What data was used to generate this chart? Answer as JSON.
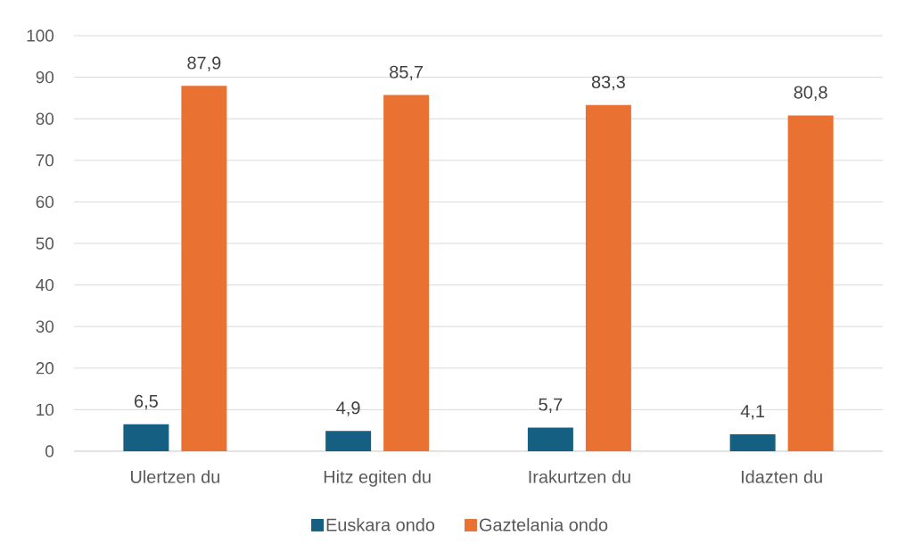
{
  "chart_data": {
    "type": "bar",
    "categories": [
      "Ulertzen du",
      "Hitz egiten du",
      "Irakurtzen du",
      "Idazten du"
    ],
    "series": [
      {
        "name": "Euskara ondo",
        "color": "#156082",
        "values": [
          6.5,
          4.9,
          5.7,
          4.1
        ],
        "value_labels": [
          "6,5",
          "4,9",
          "5,7",
          "4,1"
        ]
      },
      {
        "name": "Gaztelania ondo",
        "color": "#e97132",
        "values": [
          87.9,
          85.7,
          83.3,
          80.8
        ],
        "value_labels": [
          "87,9",
          "85,7",
          "83,3",
          "80,8"
        ]
      }
    ],
    "ylim": [
      0,
      100
    ],
    "yticks": [
      0,
      10,
      20,
      30,
      40,
      50,
      60,
      70,
      80,
      90,
      100
    ],
    "grid": "y",
    "legend": "bottom"
  }
}
